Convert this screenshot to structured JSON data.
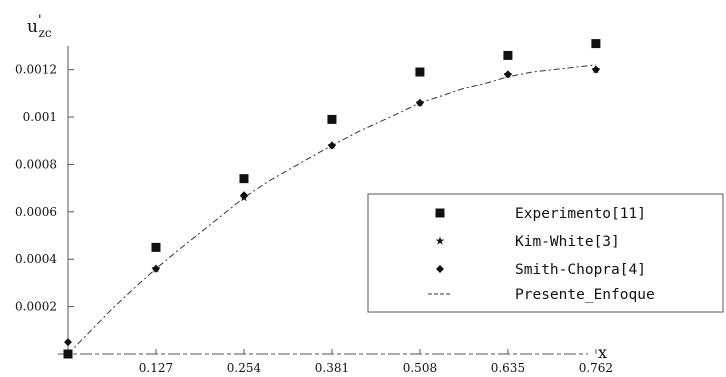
{
  "chart_data": {
    "type": "scatter",
    "ylabel_base": "u",
    "ylabel_sub": "zc",
    "ylabel_mark": "'",
    "xlabel": "x",
    "xlim": [
      0,
      0.83
    ],
    "ylim": [
      0,
      0.00138
    ],
    "x_ticks": [
      0.127,
      0.254,
      0.381,
      0.508,
      0.635,
      0.762
    ],
    "x_tick_labels": [
      "0.127",
      "0.254",
      "0.381",
      "0.508",
      "0.635",
      "0.762"
    ],
    "y_ticks": [
      0.0002,
      0.0004,
      0.0006,
      0.0008,
      0.001,
      0.0012
    ],
    "y_tick_labels": [
      "0.0002",
      "0.0004",
      "0.0006",
      "0.0008",
      "0.001",
      "0.0012"
    ],
    "grid": false,
    "legend_position": "center-right",
    "series": [
      {
        "name": "Experimento[11]",
        "marker": "square",
        "style": "points",
        "x": [
          0,
          0.127,
          0.254,
          0.381,
          0.508,
          0.635,
          0.762
        ],
        "y": [
          0.0,
          0.00045,
          0.00074,
          0.00099,
          0.00119,
          0.00126,
          0.00131
        ]
      },
      {
        "name": "Kim-White[3]",
        "marker": "star",
        "style": "points",
        "x": [
          0,
          0.127,
          0.254,
          0.381,
          0.508,
          0.635,
          0.762
        ],
        "y": [
          0.0,
          0.00036,
          0.00066,
          0.00088,
          0.00106,
          0.00118,
          0.0012
        ]
      },
      {
        "name": "Smith-Chopra[4]",
        "marker": "diamond",
        "style": "points",
        "x": [
          0,
          0.127,
          0.254,
          0.381,
          0.508,
          0.635,
          0.762
        ],
        "y": [
          5e-05,
          0.00036,
          0.00067,
          0.00088,
          0.00106,
          0.00118,
          0.0012
        ]
      },
      {
        "name": "Presente_Enfoque",
        "marker": "none",
        "style": "dashed-line",
        "x": [
          0,
          0.03,
          0.0635,
          0.1,
          0.127,
          0.16,
          0.19,
          0.22,
          0.254,
          0.29,
          0.32,
          0.35,
          0.381,
          0.42,
          0.45,
          0.48,
          0.508,
          0.54,
          0.57,
          0.6,
          0.635,
          0.67,
          0.7,
          0.73,
          0.762
        ],
        "y": [
          0.0,
          9e-05,
          0.00019,
          0.00029,
          0.00036,
          0.00044,
          0.00051,
          0.00058,
          0.00066,
          0.00073,
          0.00078,
          0.00083,
          0.00088,
          0.00094,
          0.00098,
          0.00102,
          0.00106,
          0.00109,
          0.00112,
          0.00114,
          0.00117,
          0.00119,
          0.0012,
          0.00121,
          0.00122
        ]
      }
    ]
  }
}
